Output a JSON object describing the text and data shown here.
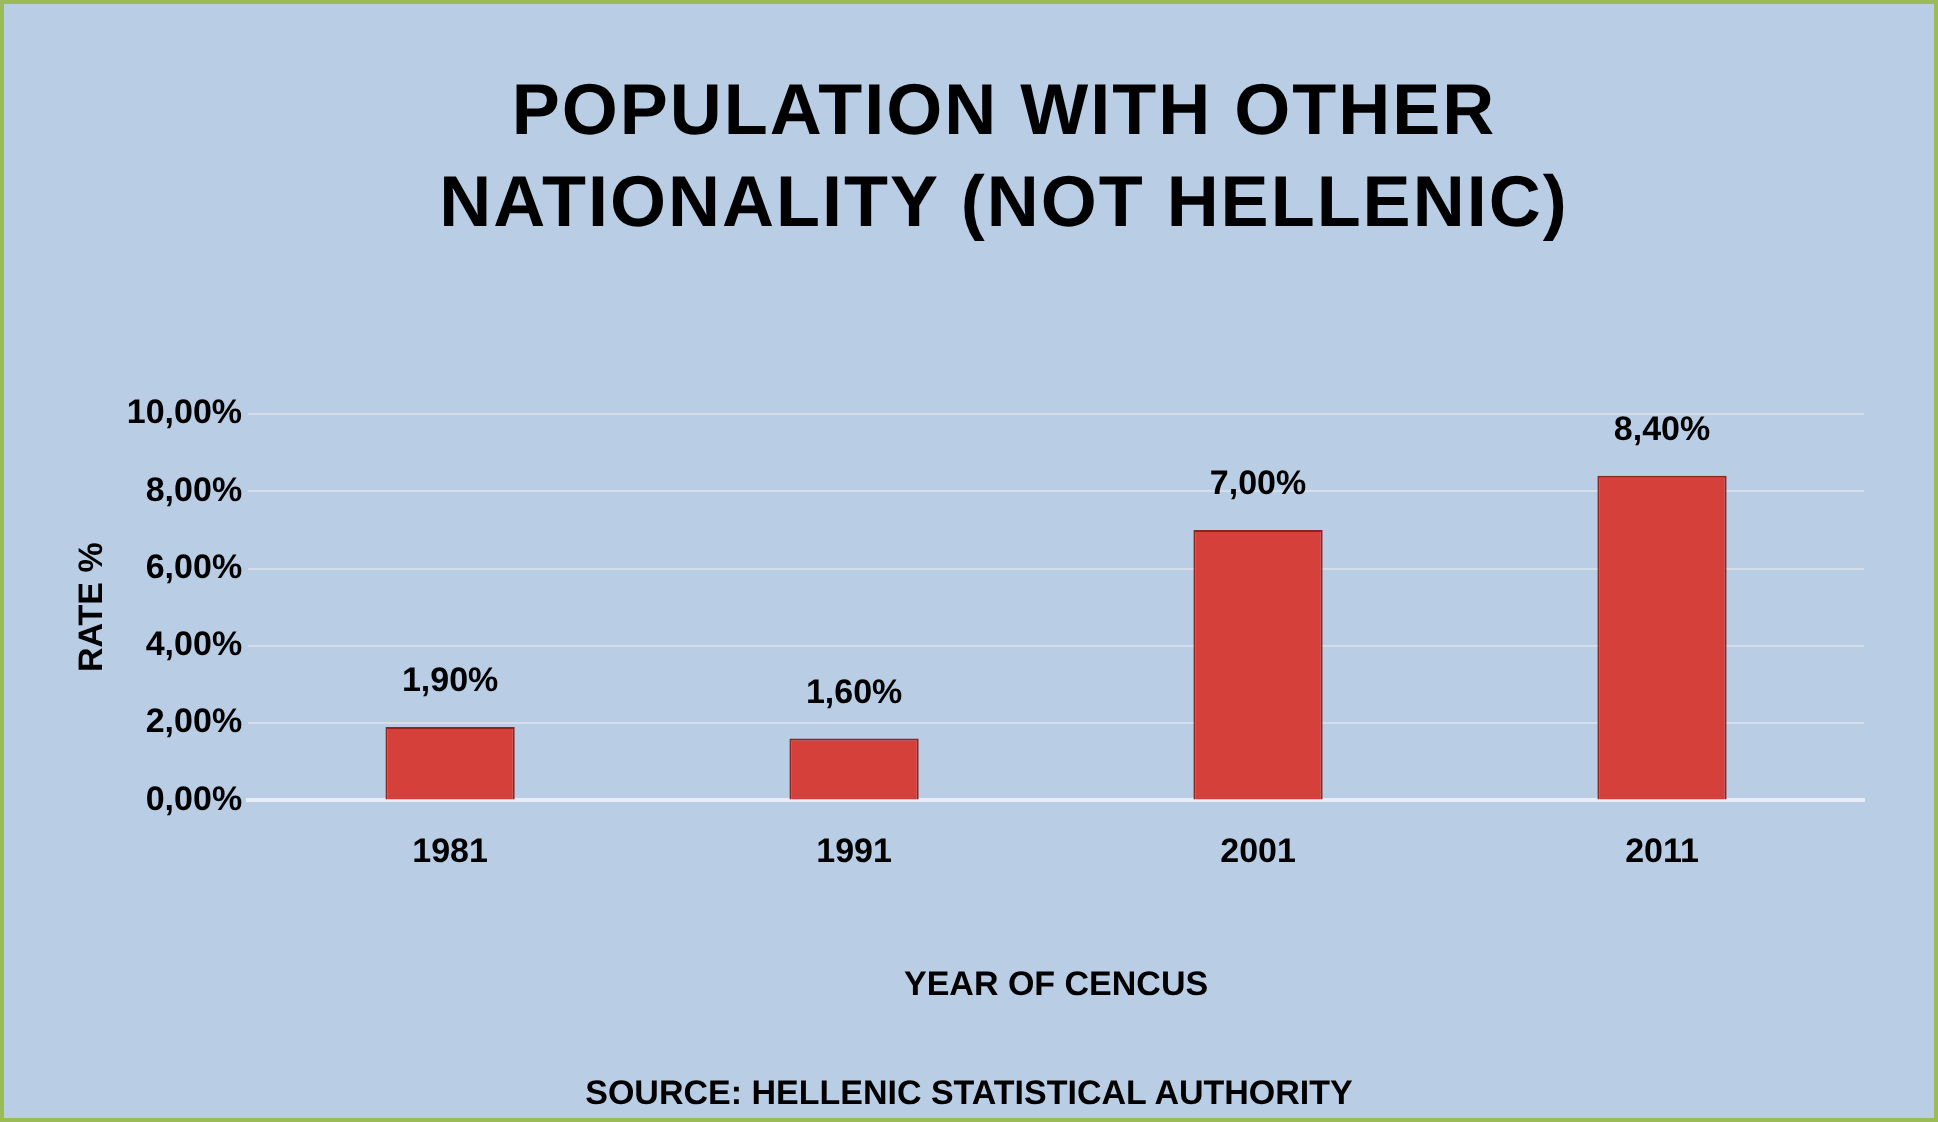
{
  "chart_data": {
    "type": "bar",
    "title": "POPULATION WITH OTHER NATIONALITY (NOT HELLENIC)",
    "xlabel": "YEAR OF CENCUS",
    "ylabel": "RATE %",
    "categories": [
      "1981",
      "1991",
      "2001",
      "2011"
    ],
    "values": [
      1.9,
      1.6,
      7.0,
      8.4
    ],
    "value_labels": [
      "1,90%",
      "1,60%",
      "7,00%",
      "8,40%"
    ],
    "color": "#d6403a",
    "ylim": [
      0,
      10
    ],
    "yticks": [
      {
        "value": 0,
        "label": "0,00%"
      },
      {
        "value": 2,
        "label": "2,00%"
      },
      {
        "value": 4,
        "label": "4,00%"
      },
      {
        "value": 6,
        "label": "6,00%"
      },
      {
        "value": 8,
        "label": "8,00%"
      },
      {
        "value": 10,
        "label": "10,00%"
      }
    ],
    "grid": "y",
    "legend": false,
    "annotations": [
      "SOURCE: HELLENIC STATISTICAL AUTHORITY"
    ]
  }
}
